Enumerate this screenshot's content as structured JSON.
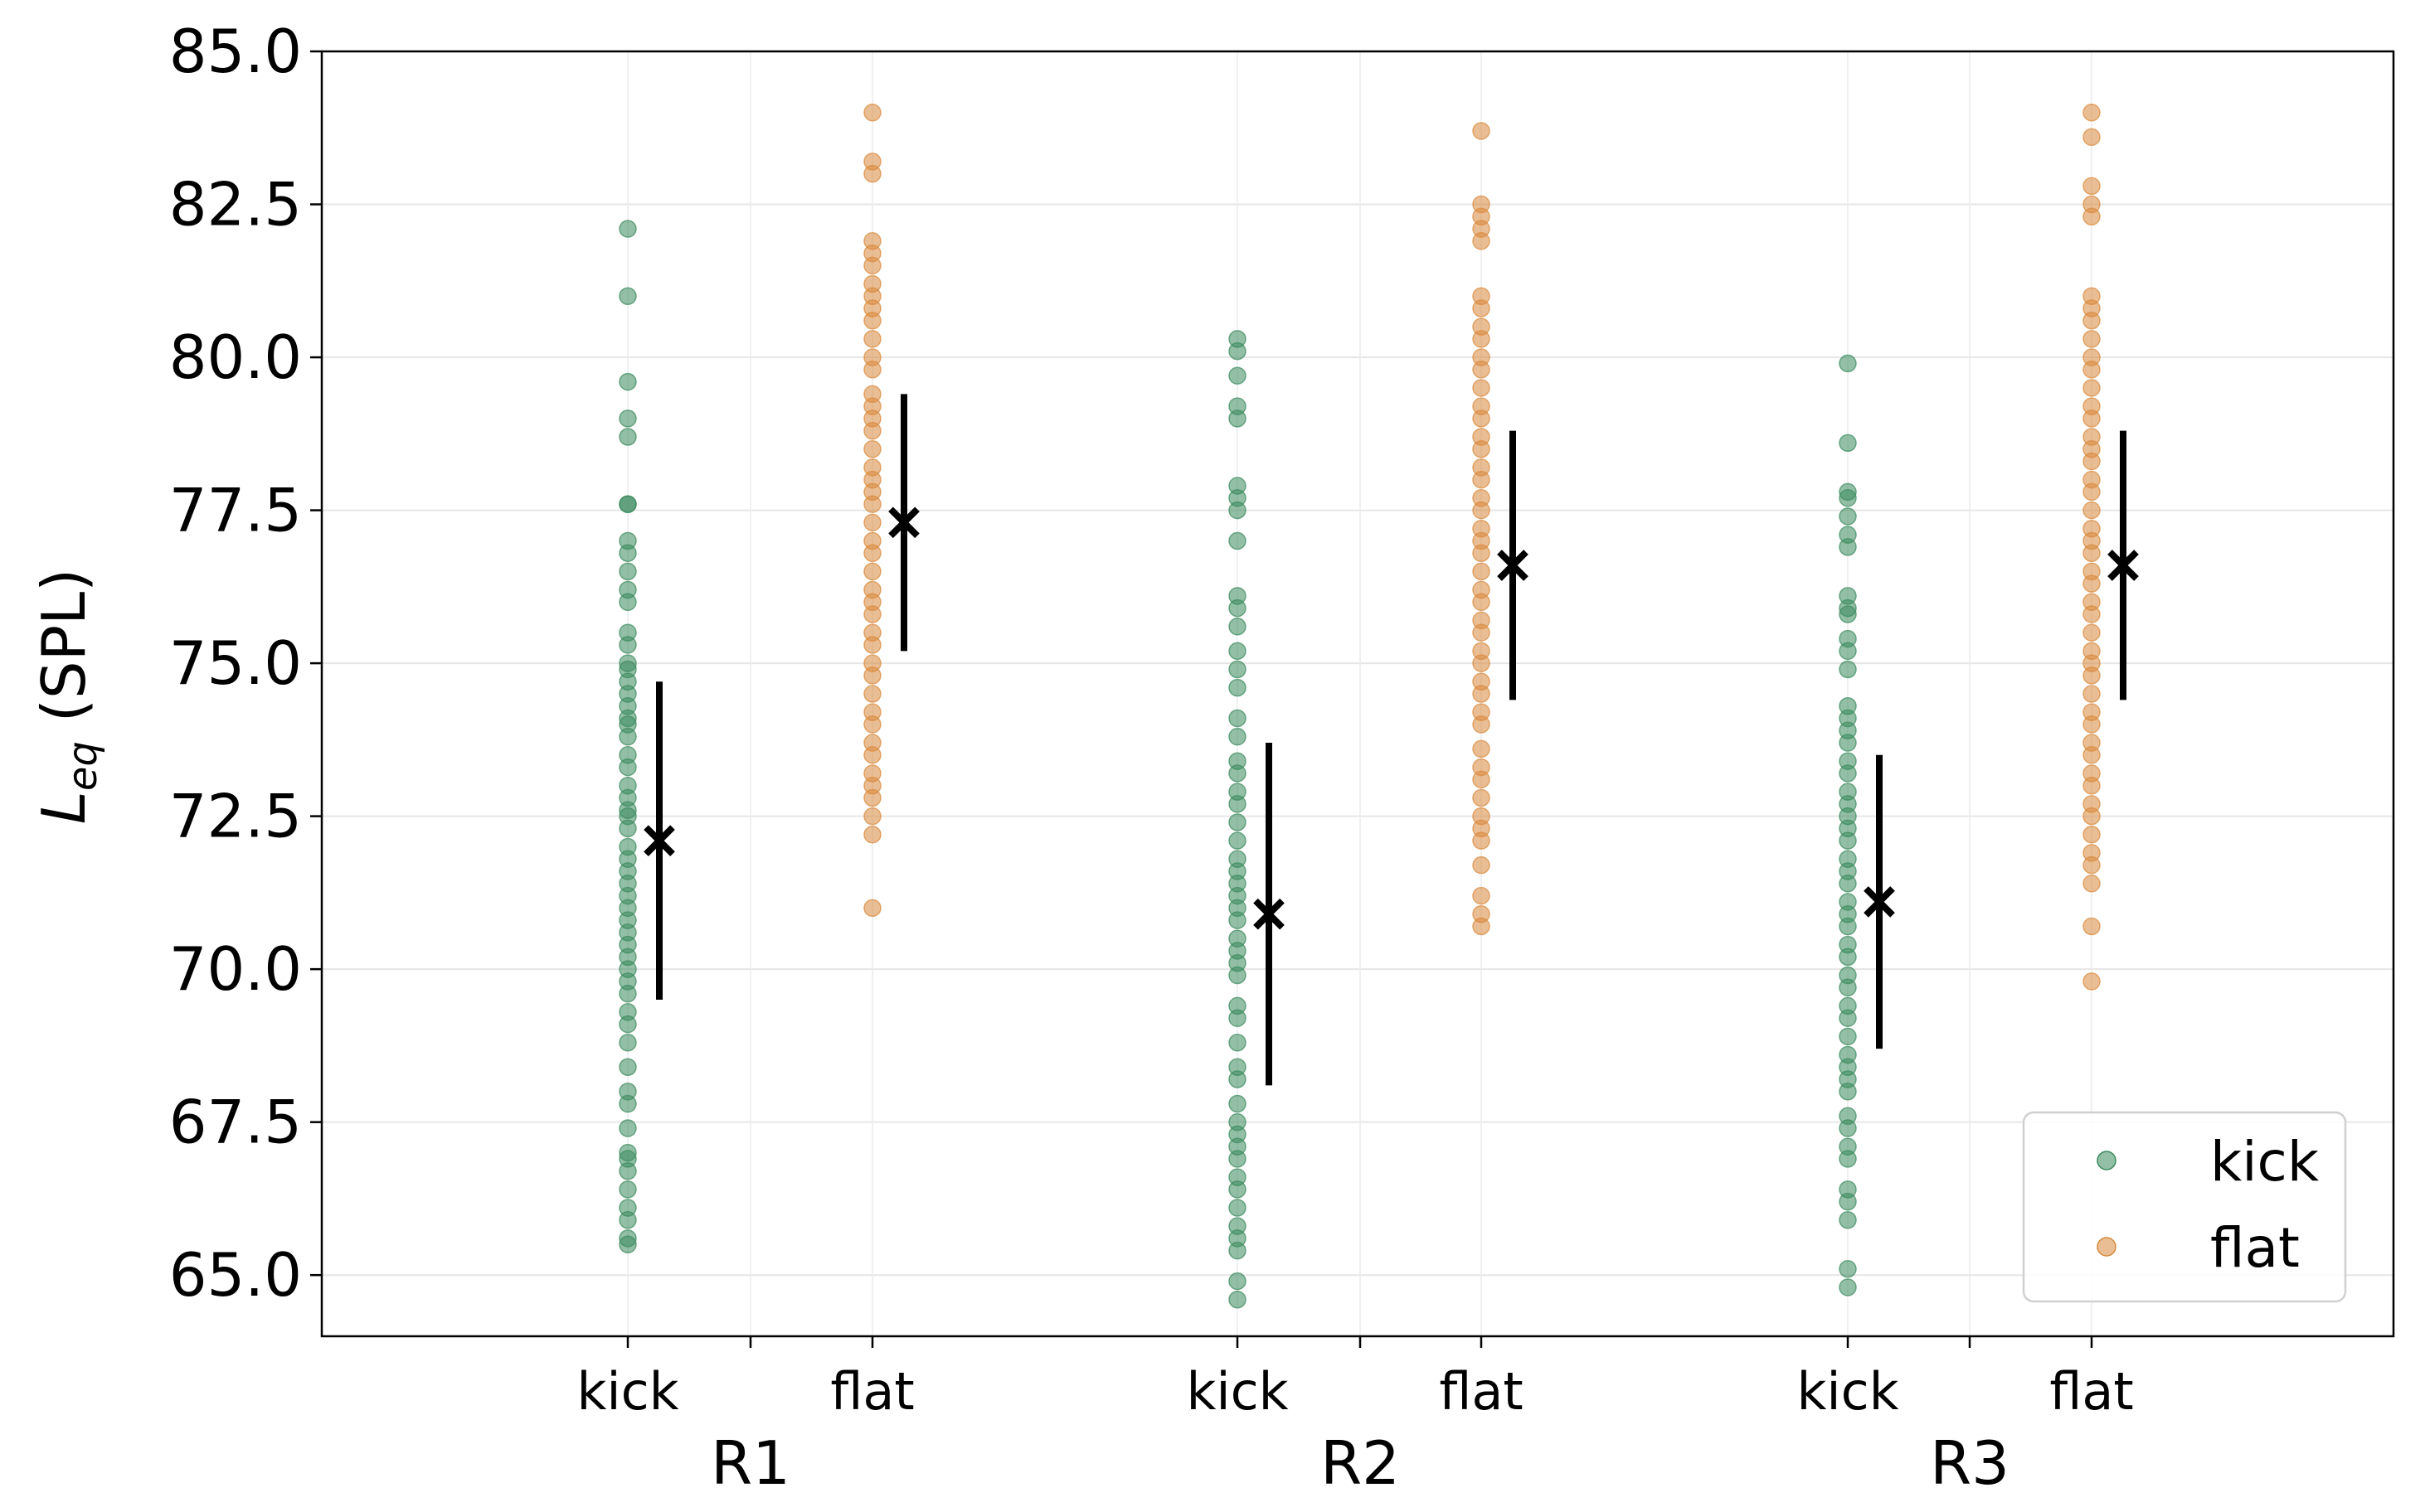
{
  "chart_data": {
    "type": "scatter",
    "title": "",
    "ylabel": "L_eq (SPL)",
    "ylabel_main": "L",
    "ylabel_sub": "eq",
    "ylabel_unit": " (SPL)",
    "xlabel": "",
    "ylim": [
      64.0,
      85.0
    ],
    "yticks": [
      "65.0",
      "67.5",
      "70.0",
      "72.5",
      "75.0",
      "77.5",
      "80.0",
      "82.5",
      "85.0"
    ],
    "grid": true,
    "legend_position": "bottom-right",
    "colors": {
      "kick": "#3a8a5c",
      "flat": "#d9893c",
      "mean": "#000000"
    },
    "legend": [
      {
        "name": "kick",
        "label": "kick"
      },
      {
        "name": "flat",
        "label": "flat"
      }
    ],
    "groups": [
      {
        "label": "R1",
        "series": [
          {
            "name": "kick",
            "label": "kick",
            "mean": 72.1,
            "std": 2.6,
            "values": [
              82.1,
              81.0,
              79.6,
              79.0,
              78.7,
              77.6,
              77.6,
              77.0,
              76.8,
              76.5,
              76.2,
              76.0,
              75.5,
              75.3,
              75.0,
              74.9,
              74.7,
              74.5,
              74.3,
              74.1,
              74.0,
              73.8,
              73.5,
              73.3,
              73.0,
              72.8,
              72.6,
              72.5,
              72.3,
              72.0,
              71.8,
              71.6,
              71.4,
              71.2,
              71.0,
              70.8,
              70.6,
              70.4,
              70.2,
              70.0,
              69.8,
              69.6,
              69.3,
              69.1,
              68.8,
              68.4,
              68.0,
              67.8,
              67.4,
              67.0,
              66.9,
              66.7,
              66.4,
              66.1,
              65.9,
              65.6,
              65.5
            ]
          },
          {
            "name": "flat",
            "label": "flat",
            "mean": 77.3,
            "std": 2.1,
            "values": [
              84.0,
              83.2,
              83.0,
              81.9,
              81.7,
              81.5,
              81.2,
              81.0,
              80.8,
              80.6,
              80.3,
              80.0,
              79.8,
              79.4,
              79.2,
              79.0,
              78.8,
              78.5,
              78.2,
              78.0,
              77.8,
              77.6,
              77.3,
              77.0,
              76.8,
              76.5,
              76.2,
              76.0,
              75.8,
              75.5,
              75.3,
              75.0,
              74.8,
              74.5,
              74.2,
              74.0,
              73.7,
              73.5,
              73.2,
              73.0,
              72.8,
              72.5,
              72.2,
              71.0
            ]
          }
        ]
      },
      {
        "label": "R2",
        "series": [
          {
            "name": "kick",
            "label": "kick",
            "mean": 70.9,
            "std": 2.8,
            "values": [
              80.3,
              80.1,
              79.7,
              79.2,
              79.0,
              77.9,
              77.7,
              77.5,
              77.0,
              76.1,
              75.9,
              75.6,
              75.2,
              74.9,
              74.6,
              74.1,
              73.8,
              73.4,
              73.2,
              72.9,
              72.7,
              72.4,
              72.1,
              71.8,
              71.6,
              71.4,
              71.2,
              71.0,
              70.8,
              70.5,
              70.3,
              70.1,
              69.9,
              69.4,
              69.2,
              68.8,
              68.4,
              68.2,
              67.8,
              67.5,
              67.3,
              67.1,
              66.9,
              66.6,
              66.4,
              66.1,
              65.8,
              65.6,
              65.4,
              64.9,
              64.6
            ]
          },
          {
            "name": "flat",
            "label": "flat",
            "mean": 76.6,
            "std": 2.2,
            "values": [
              83.7,
              82.5,
              82.3,
              82.1,
              81.9,
              81.0,
              80.8,
              80.5,
              80.3,
              80.0,
              79.8,
              79.5,
              79.2,
              79.0,
              78.7,
              78.5,
              78.2,
              78.0,
              77.7,
              77.5,
              77.2,
              77.0,
              76.8,
              76.5,
              76.2,
              76.0,
              75.7,
              75.5,
              75.2,
              75.0,
              74.7,
              74.5,
              74.2,
              74.0,
              73.6,
              73.3,
              73.1,
              72.8,
              72.5,
              72.3,
              72.1,
              71.7,
              71.2,
              70.9,
              70.7
            ]
          }
        ]
      },
      {
        "label": "R3",
        "series": [
          {
            "name": "kick",
            "label": "kick",
            "mean": 71.1,
            "std": 2.4,
            "values": [
              79.9,
              78.6,
              77.8,
              77.7,
              77.4,
              77.1,
              76.9,
              76.1,
              75.9,
              75.8,
              75.4,
              75.2,
              74.9,
              74.3,
              74.1,
              73.9,
              73.7,
              73.4,
              73.2,
              72.9,
              72.7,
              72.5,
              72.3,
              72.1,
              71.8,
              71.6,
              71.4,
              71.1,
              70.9,
              70.7,
              70.4,
              70.2,
              69.9,
              69.7,
              69.4,
              69.2,
              68.9,
              68.6,
              68.4,
              68.2,
              68.0,
              67.6,
              67.4,
              67.1,
              66.9,
              66.4,
              66.2,
              65.9,
              65.1,
              64.8
            ]
          },
          {
            "name": "flat",
            "label": "flat",
            "mean": 76.6,
            "std": 2.2,
            "values": [
              84.0,
              83.6,
              82.8,
              82.5,
              82.3,
              81.0,
              80.8,
              80.6,
              80.3,
              80.0,
              79.8,
              79.5,
              79.2,
              79.0,
              78.7,
              78.5,
              78.3,
              78.0,
              77.8,
              77.5,
              77.2,
              77.0,
              76.8,
              76.5,
              76.3,
              76.0,
              75.8,
              75.5,
              75.2,
              75.0,
              74.8,
              74.5,
              74.2,
              74.0,
              73.7,
              73.5,
              73.2,
              73.0,
              72.7,
              72.5,
              72.2,
              71.9,
              71.7,
              71.4,
              70.7,
              69.8
            ]
          }
        ]
      }
    ]
  }
}
